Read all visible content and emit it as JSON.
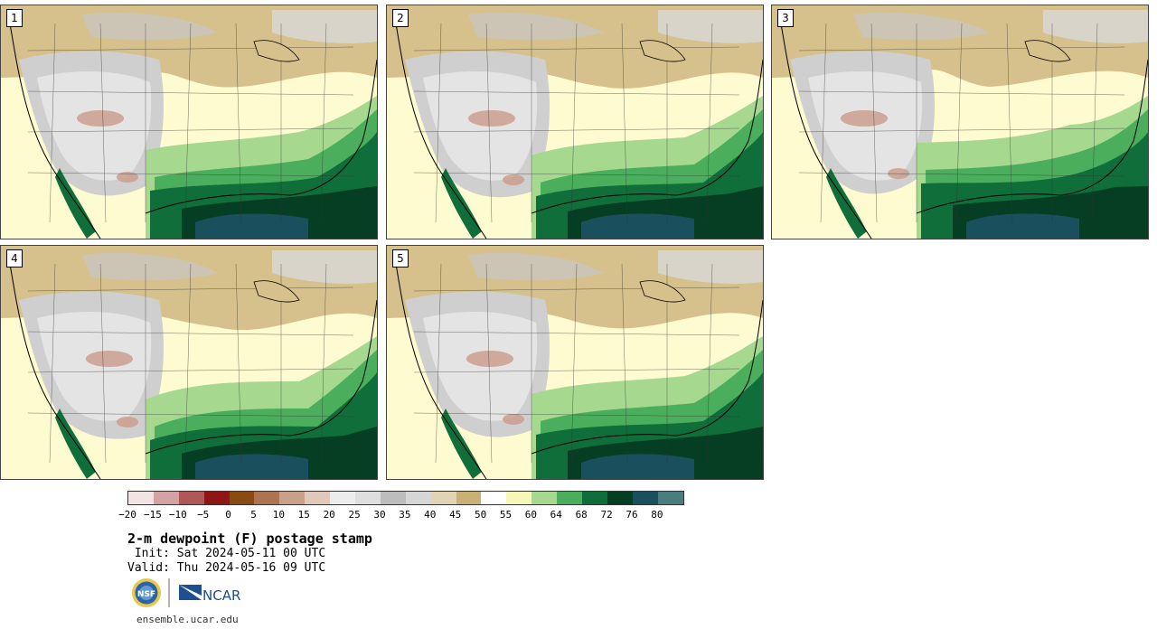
{
  "panels": [
    {
      "label": "1"
    },
    {
      "label": "2"
    },
    {
      "label": "3"
    },
    {
      "label": "4"
    },
    {
      "label": "5"
    }
  ],
  "colorbar": {
    "colors": [
      "#f3e4e4",
      "#d3a3a3",
      "#b05858",
      "#8e1616",
      "#8a4a14",
      "#ad7452",
      "#c9a18a",
      "#e0c8ba",
      "#ececec",
      "#dedede",
      "#bdbdbd",
      "#d6d6d6",
      "#e0d4b4",
      "#c9b077",
      "#ffffff",
      "#f6f8b8",
      "#a6d890",
      "#4aae5c",
      "#0f6e3a",
      "#053e22",
      "#1a4f5e",
      "#4a7e7e"
    ],
    "ticks": [
      "−20",
      "−15",
      "−10",
      "−5",
      "0",
      "5",
      "10",
      "15",
      "20",
      "25",
      "30",
      "35",
      "40",
      "45",
      "50",
      "55",
      "60",
      "64",
      "68",
      "72",
      "76",
      "80"
    ]
  },
  "title": "2-m dewpoint (F) postage stamp",
  "init": " Init: Sat 2024-05-11 00 UTC",
  "valid": "Valid: Thu 2024-05-16 09 UTC",
  "logos": {
    "nsf": "NSF",
    "ncar": "NCAR"
  },
  "site": "ensemble.ucar.edu"
}
